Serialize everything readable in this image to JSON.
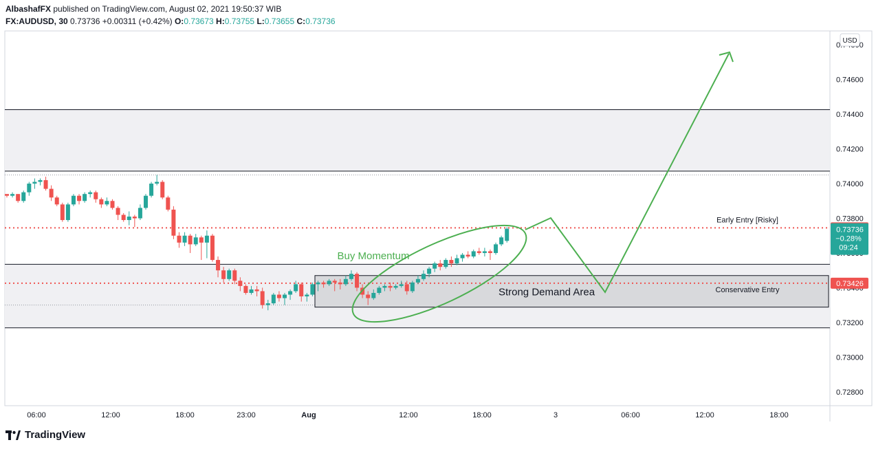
{
  "header": {
    "author": "AlbashafFX",
    "published": "published on TradingView.com, August 02, 2021 19:50:37 WIB",
    "symbol": "FX:AUDUSD, 30",
    "last": "0.73736",
    "change": "+0.00311 (+0.42%)",
    "o_label": "O:",
    "o": "0.73673",
    "h_label": "H:",
    "h": "0.73755",
    "l_label": "L:",
    "l": "0.73655",
    "c_label": "C:",
    "c": "0.73736"
  },
  "footer": {
    "brand": "TradingView"
  },
  "colors": {
    "up": "#26a69a",
    "down": "#ef5350",
    "annotation": "#4caf50",
    "zone": "#f0f0f3",
    "demand": "#d8d9dc"
  },
  "chart_data": {
    "type": "candlestick",
    "currency": "USD",
    "ylim": [
      0.7272,
      0.7488
    ],
    "y_ticks": [
      "0.74800",
      "0.74600",
      "0.74400",
      "0.74200",
      "0.74000",
      "0.73800",
      "0.73600",
      "0.73400",
      "0.73200",
      "0.73000",
      "0.72800"
    ],
    "x_ticks": [
      "06:00",
      "12:00",
      "18:00",
      "23:00",
      "Aug",
      "12:00",
      "18:00",
      "3",
      "06:00",
      "12:00",
      "18:00"
    ],
    "price_labels": [
      {
        "value": "0.73745",
        "price": 0.73745,
        "color": "#ef5350"
      },
      {
        "value": "0.73736",
        "price": 0.73736,
        "color": "#26a69a",
        "sub": [
          "−0.28%",
          "09:24"
        ]
      },
      {
        "value": "0.73426",
        "price": 0.73426,
        "color": "#ef5350"
      }
    ],
    "zones": [
      {
        "from": 0.74072,
        "to": 0.74426,
        "label": ""
      },
      {
        "from": 0.73169,
        "to": 0.73535,
        "label": ""
      }
    ],
    "demand_area": {
      "from": 0.73288,
      "to": 0.7347,
      "label": "Strong Demand Area"
    },
    "levels": [
      {
        "price": 0.73745,
        "label": "Early Entry [Risky]"
      },
      {
        "price": 0.73426,
        "label": "Conservative Entry"
      }
    ],
    "annotations": {
      "momentum": "Buy Momentum"
    },
    "candles": [
      [
        0.7394,
        0.7394,
        0.7392,
        0.7393
      ],
      [
        0.7393,
        0.7395,
        0.7392,
        0.7394
      ],
      [
        0.7394,
        0.7394,
        0.7389,
        0.739
      ],
      [
        0.739,
        0.7396,
        0.7389,
        0.7395
      ],
      [
        0.7395,
        0.7401,
        0.7393,
        0.74
      ],
      [
        0.74,
        0.7403,
        0.7397,
        0.7401
      ],
      [
        0.7401,
        0.7403,
        0.7399,
        0.7402
      ],
      [
        0.7402,
        0.7404,
        0.7396,
        0.7397
      ],
      [
        0.7397,
        0.7399,
        0.739,
        0.7392
      ],
      [
        0.7392,
        0.7393,
        0.7387,
        0.7388
      ],
      [
        0.7388,
        0.7389,
        0.7378,
        0.7379
      ],
      [
        0.7379,
        0.7389,
        0.7378,
        0.7388
      ],
      [
        0.7388,
        0.7394,
        0.7387,
        0.7393
      ],
      [
        0.7393,
        0.7394,
        0.7388,
        0.739
      ],
      [
        0.739,
        0.7395,
        0.7389,
        0.7394
      ],
      [
        0.7394,
        0.7396,
        0.7392,
        0.7395
      ],
      [
        0.7395,
        0.7396,
        0.7389,
        0.7391
      ],
      [
        0.7391,
        0.7392,
        0.7386,
        0.7388
      ],
      [
        0.7388,
        0.7392,
        0.7387,
        0.739
      ],
      [
        0.739,
        0.7391,
        0.7385,
        0.7386
      ],
      [
        0.7386,
        0.7387,
        0.7379,
        0.7382
      ],
      [
        0.7382,
        0.7383,
        0.7378,
        0.7379
      ],
      [
        0.7379,
        0.7384,
        0.7376,
        0.7381
      ],
      [
        0.7381,
        0.7382,
        0.7375,
        0.738
      ],
      [
        0.738,
        0.7388,
        0.7379,
        0.7386
      ],
      [
        0.7386,
        0.7394,
        0.7385,
        0.7393
      ],
      [
        0.7393,
        0.7401,
        0.7392,
        0.74
      ],
      [
        0.74,
        0.7405,
        0.7399,
        0.7401
      ],
      [
        0.7401,
        0.7402,
        0.7391,
        0.7392
      ],
      [
        0.7392,
        0.7393,
        0.7384,
        0.7385
      ],
      [
        0.7385,
        0.7387,
        0.7368,
        0.737
      ],
      [
        0.737,
        0.7372,
        0.7363,
        0.7366
      ],
      [
        0.7366,
        0.7372,
        0.7364,
        0.737
      ],
      [
        0.737,
        0.7371,
        0.736,
        0.7365
      ],
      [
        0.7365,
        0.7371,
        0.7364,
        0.7369
      ],
      [
        0.7369,
        0.737,
        0.7356,
        0.7366
      ],
      [
        0.7366,
        0.7373,
        0.7357,
        0.737
      ],
      [
        0.737,
        0.7371,
        0.7355,
        0.7356
      ],
      [
        0.7356,
        0.7358,
        0.7346,
        0.735
      ],
      [
        0.735,
        0.7352,
        0.7343,
        0.7345
      ],
      [
        0.7345,
        0.7351,
        0.7344,
        0.735
      ],
      [
        0.735,
        0.7351,
        0.7342,
        0.7344
      ],
      [
        0.7344,
        0.7346,
        0.7338,
        0.7341
      ],
      [
        0.7341,
        0.7342,
        0.7336,
        0.7337
      ],
      [
        0.7337,
        0.7341,
        0.7336,
        0.7339
      ],
      [
        0.7339,
        0.7341,
        0.7335,
        0.7338
      ],
      [
        0.7338,
        0.734,
        0.7328,
        0.733
      ],
      [
        0.733,
        0.7333,
        0.7327,
        0.7331
      ],
      [
        0.7331,
        0.7337,
        0.733,
        0.7336
      ],
      [
        0.7336,
        0.7338,
        0.7332,
        0.7334
      ],
      [
        0.7334,
        0.7337,
        0.733,
        0.7336
      ],
      [
        0.7336,
        0.7339,
        0.7333,
        0.7338
      ],
      [
        0.7338,
        0.7344,
        0.7337,
        0.7342
      ],
      [
        0.7342,
        0.7343,
        0.7332,
        0.7335
      ],
      [
        0.7335,
        0.7337,
        0.7332,
        0.7336
      ],
      [
        0.7336,
        0.7343,
        0.7335,
        0.7342
      ],
      [
        0.7342,
        0.7344,
        0.7338,
        0.7343
      ],
      [
        0.7343,
        0.7344,
        0.734,
        0.7342
      ],
      [
        0.7342,
        0.7345,
        0.7341,
        0.7344
      ],
      [
        0.7344,
        0.7345,
        0.7338,
        0.7343
      ],
      [
        0.7343,
        0.7345,
        0.7339,
        0.7342
      ],
      [
        0.7342,
        0.7347,
        0.7341,
        0.7345
      ],
      [
        0.7345,
        0.735,
        0.7344,
        0.7348
      ],
      [
        0.7348,
        0.7349,
        0.7338,
        0.734
      ],
      [
        0.734,
        0.7342,
        0.7334,
        0.7336
      ],
      [
        0.7336,
        0.7338,
        0.733,
        0.7334
      ],
      [
        0.7334,
        0.7339,
        0.7333,
        0.7337
      ],
      [
        0.7337,
        0.7341,
        0.7336,
        0.734
      ],
      [
        0.734,
        0.7342,
        0.7338,
        0.7341
      ],
      [
        0.7341,
        0.7343,
        0.7338,
        0.734
      ],
      [
        0.734,
        0.7342,
        0.7339,
        0.7341
      ],
      [
        0.7341,
        0.7344,
        0.734,
        0.7342
      ],
      [
        0.7342,
        0.7344,
        0.7336,
        0.7338
      ],
      [
        0.7338,
        0.7344,
        0.7337,
        0.7343
      ],
      [
        0.7343,
        0.7347,
        0.7342,
        0.7345
      ],
      [
        0.7345,
        0.735,
        0.7344,
        0.7348
      ],
      [
        0.7348,
        0.7352,
        0.7346,
        0.7351
      ],
      [
        0.7351,
        0.7355,
        0.7349,
        0.7354
      ],
      [
        0.7354,
        0.7356,
        0.735,
        0.7352
      ],
      [
        0.7352,
        0.7357,
        0.7351,
        0.7356
      ],
      [
        0.7356,
        0.7358,
        0.7352,
        0.7354
      ],
      [
        0.7354,
        0.7359,
        0.7353,
        0.7357
      ],
      [
        0.7357,
        0.736,
        0.7355,
        0.7359
      ],
      [
        0.7359,
        0.7361,
        0.7357,
        0.7358
      ],
      [
        0.7358,
        0.7362,
        0.7357,
        0.7361
      ],
      [
        0.7361,
        0.7363,
        0.7359,
        0.736
      ],
      [
        0.736,
        0.7363,
        0.7358,
        0.7361
      ],
      [
        0.7361,
        0.7362,
        0.7356,
        0.736
      ],
      [
        0.736,
        0.7366,
        0.7359,
        0.7365
      ],
      [
        0.7365,
        0.737,
        0.7364,
        0.7369
      ],
      [
        0.7367,
        0.7375,
        0.7366,
        0.7374
      ]
    ],
    "forecast_path": [
      [
        0.7374,
        0.738
      ],
      [
        0.7385,
        0.7385
      ],
      [
        0.7342,
        0.7342
      ],
      [
        0.748,
        0.748
      ]
    ]
  }
}
